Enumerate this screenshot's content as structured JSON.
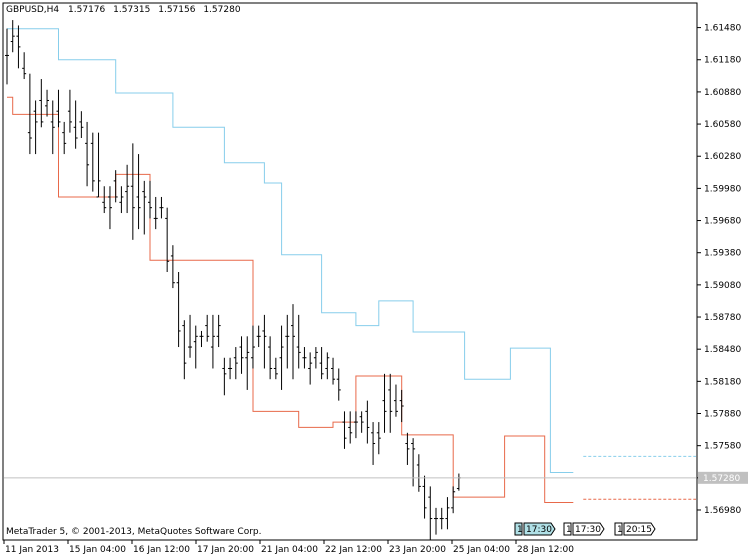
{
  "header": {
    "symbol": "GBPUSD,H4",
    "open": "1.57176",
    "high": "1.57315",
    "low": "1.57156",
    "close": "1.57280"
  },
  "footer": {
    "copyright": "MetaTrader 5, © 2001-2013, MetaQuotes Software Corp."
  },
  "price_tag": "1.57280",
  "events": [
    {
      "count": "1",
      "time": "17:30",
      "highlighted": true
    },
    {
      "count": "1",
      "time": "17:30",
      "highlighted": false
    },
    {
      "count": "1",
      "time": "20:15",
      "highlighted": false
    }
  ],
  "colors": {
    "upper_band": "#87ceeb",
    "lower_band": "#e8694a",
    "bar": "#000000",
    "grid": "#c0c0c0",
    "event_highlight": "#b0e0e6"
  },
  "chart_data": {
    "type": "ohlc",
    "ylim": [
      1.567,
      1.617
    ],
    "y_ticks": [
      "1.61480",
      "1.61180",
      "1.60880",
      "1.60580",
      "1.60280",
      "1.59980",
      "1.59680",
      "1.59380",
      "1.59080",
      "1.58780",
      "1.58480",
      "1.58180",
      "1.57880",
      "1.57580",
      "1.57280",
      "1.56980"
    ],
    "x_labels": [
      "11 Jan 2013",
      "15 Jan 04:00",
      "16 Jan 12:00",
      "17 Jan 20:00",
      "21 Jan 04:00",
      "22 Jan 12:00",
      "23 Jan 20:00",
      "25 Jan 04:00",
      "28 Jan 12:00"
    ],
    "bars": [
      [
        1.6122,
        1.6147,
        1.6095,
        1.6122
      ],
      [
        1.6135,
        1.6155,
        1.6125,
        1.614
      ],
      [
        1.614,
        1.615,
        1.611,
        1.613
      ],
      [
        1.611,
        1.6125,
        1.61,
        1.6105
      ],
      [
        1.605,
        1.6105,
        1.603,
        1.6045
      ],
      [
        1.607,
        1.608,
        1.603,
        1.606
      ],
      [
        1.608,
        1.61,
        1.6055,
        1.606
      ],
      [
        1.6075,
        1.609,
        1.6065,
        1.608
      ],
      [
        1.606,
        1.608,
        1.603,
        1.6055
      ],
      [
        1.607,
        1.609,
        1.6055,
        1.606
      ],
      [
        1.605,
        1.606,
        1.603,
        1.604
      ],
      [
        1.607,
        1.609,
        1.605,
        1.606
      ],
      [
        1.6055,
        1.608,
        1.6035,
        1.6045
      ],
      [
        1.606,
        1.607,
        1.6045,
        1.6055
      ],
      [
        1.604,
        1.606,
        1.6,
        1.602
      ],
      [
        1.604,
        1.605,
        1.5995,
        1.6005
      ],
      [
        1.599,
        1.605,
        1.599,
        1.6005
      ],
      [
        1.5985,
        1.6,
        1.5975,
        1.598
      ],
      [
        1.599,
        1.6,
        1.596,
        1.598
      ],
      [
        1.6005,
        1.6015,
        1.5985,
        1.599
      ],
      [
        1.5985,
        1.6,
        1.5975,
        1.599
      ],
      [
        1.5995,
        1.602,
        1.5975,
        1.6
      ],
      [
        1.6,
        1.604,
        1.595,
        1.598
      ],
      [
        1.599,
        1.603,
        1.596,
        1.598
      ],
      [
        1.5995,
        1.6005,
        1.5955,
        1.599
      ],
      [
        1.5985,
        1.6005,
        1.597,
        1.598
      ],
      [
        1.597,
        1.599,
        1.596,
        1.597
      ],
      [
        1.598,
        1.599,
        1.597,
        1.598
      ],
      [
        1.597,
        1.598,
        1.592,
        1.593
      ],
      [
        1.5935,
        1.5945,
        1.5905,
        1.591
      ],
      [
        1.591,
        1.592,
        1.585,
        1.5865
      ],
      [
        1.587,
        1.5875,
        1.582,
        1.5835
      ],
      [
        1.585,
        1.588,
        1.584,
        1.585
      ],
      [
        1.5855,
        1.587,
        1.583,
        1.586
      ],
      [
        1.586,
        1.5865,
        1.585,
        1.586
      ],
      [
        1.587,
        1.588,
        1.5855,
        1.586
      ],
      [
        1.585,
        1.588,
        1.583,
        1.586
      ],
      [
        1.586,
        1.588,
        1.585,
        1.587
      ],
      [
        1.583,
        1.584,
        1.5805,
        1.5825
      ],
      [
        1.583,
        1.584,
        1.582,
        1.583
      ],
      [
        1.584,
        1.585,
        1.582,
        1.5835
      ],
      [
        1.585,
        1.586,
        1.5825,
        1.584
      ],
      [
        1.584,
        1.586,
        1.581,
        1.5845
      ],
      [
        1.584,
        1.587,
        1.583,
        1.585
      ],
      [
        1.586,
        1.587,
        1.585,
        1.586
      ],
      [
        1.5865,
        1.588,
        1.583,
        1.586
      ],
      [
        1.585,
        1.586,
        1.582,
        1.583
      ],
      [
        1.583,
        1.584,
        1.582,
        1.5825
      ],
      [
        1.584,
        1.587,
        1.581,
        1.585
      ],
      [
        1.586,
        1.588,
        1.583,
        1.586
      ],
      [
        1.587,
        1.589,
        1.582,
        1.586
      ],
      [
        1.585,
        1.588,
        1.583,
        1.5845
      ],
      [
        1.584,
        1.585,
        1.583,
        1.584
      ],
      [
        1.583,
        1.5845,
        1.5815,
        1.5835
      ],
      [
        1.584,
        1.585,
        1.583,
        1.5845
      ],
      [
        1.5835,
        1.585,
        1.582,
        1.5825
      ],
      [
        1.583,
        1.5845,
        1.582,
        1.584
      ],
      [
        1.583,
        1.584,
        1.5815,
        1.582
      ],
      [
        1.582,
        1.583,
        1.58,
        1.581
      ],
      [
        1.578,
        1.579,
        1.5755,
        1.5765
      ],
      [
        1.5775,
        1.579,
        1.576,
        1.577
      ],
      [
        1.578,
        1.579,
        1.5765,
        1.578
      ],
      [
        1.5785,
        1.579,
        1.577,
        1.578
      ],
      [
        1.579,
        1.58,
        1.576,
        1.5775
      ],
      [
        1.577,
        1.578,
        1.574,
        1.576
      ],
      [
        1.577,
        1.578,
        1.575,
        1.5765
      ],
      [
        1.58,
        1.5825,
        1.577,
        1.579
      ],
      [
        1.581,
        1.5825,
        1.577,
        1.579
      ],
      [
        1.58,
        1.5815,
        1.5785,
        1.579
      ],
      [
        1.58,
        1.581,
        1.578,
        1.5795
      ],
      [
        1.576,
        1.577,
        1.574,
        1.5755
      ],
      [
        1.576,
        1.5765,
        1.572,
        1.5755
      ],
      [
        1.574,
        1.575,
        1.5715,
        1.572
      ],
      [
        1.572,
        1.573,
        1.569,
        1.57
      ],
      [
        1.571,
        1.572,
        1.567,
        1.569
      ],
      [
        1.569,
        1.57,
        1.5675,
        1.569
      ],
      [
        1.569,
        1.57,
        1.568,
        1.569
      ],
      [
        1.569,
        1.571,
        1.568,
        1.57
      ],
      [
        1.57,
        1.572,
        1.5695,
        1.5715
      ],
      [
        1.5718,
        1.5732,
        1.5716,
        1.5728
      ]
    ],
    "upper_band": [
      [
        0,
        1.6147
      ],
      [
        9,
        1.6147
      ],
      [
        9,
        1.6118
      ],
      [
        19,
        1.6118
      ],
      [
        19,
        1.6087
      ],
      [
        29,
        1.6087
      ],
      [
        29,
        1.6055
      ],
      [
        38,
        1.6055
      ],
      [
        38,
        1.6022
      ],
      [
        45,
        1.6022
      ],
      [
        45,
        1.6003
      ],
      [
        48,
        1.6003
      ],
      [
        48,
        1.5936
      ],
      [
        55,
        1.5936
      ],
      [
        55,
        1.5882
      ],
      [
        61,
        1.5882
      ],
      [
        61,
        1.587
      ],
      [
        65,
        1.587
      ],
      [
        65,
        1.5893
      ],
      [
        71,
        1.5893
      ],
      [
        71,
        1.5864
      ],
      [
        80,
        1.5864
      ],
      [
        80,
        1.582
      ],
      [
        88,
        1.582
      ],
      [
        88,
        1.5849
      ],
      [
        95,
        1.5849
      ],
      [
        95,
        1.5733
      ],
      [
        99,
        1.5733
      ]
    ],
    "lower_band": [
      [
        0,
        1.6083
      ],
      [
        1,
        1.6083
      ],
      [
        1,
        1.6067
      ],
      [
        5,
        1.6067
      ],
      [
        5,
        1.6067
      ],
      [
        9,
        1.6067
      ],
      [
        9,
        1.599
      ],
      [
        16,
        1.599
      ],
      [
        16,
        1.599
      ],
      [
        19,
        1.599
      ],
      [
        19,
        1.6011
      ],
      [
        25,
        1.6011
      ],
      [
        25,
        1.5931
      ],
      [
        43,
        1.5931
      ],
      [
        43,
        1.579
      ],
      [
        51,
        1.579
      ],
      [
        51,
        1.5775
      ],
      [
        57,
        1.5775
      ],
      [
        57,
        1.578
      ],
      [
        61,
        1.578
      ],
      [
        61,
        1.5823
      ],
      [
        69,
        1.5823
      ],
      [
        69,
        1.5768
      ],
      [
        78,
        1.5768
      ],
      [
        78,
        1.571
      ],
      [
        87,
        1.571
      ],
      [
        87,
        1.5767
      ],
      [
        94,
        1.5767
      ],
      [
        94,
        1.5705
      ],
      [
        99,
        1.5705
      ]
    ],
    "current_price": 1.5728,
    "projected_upper": 1.5748,
    "projected_lower": 1.5708
  }
}
